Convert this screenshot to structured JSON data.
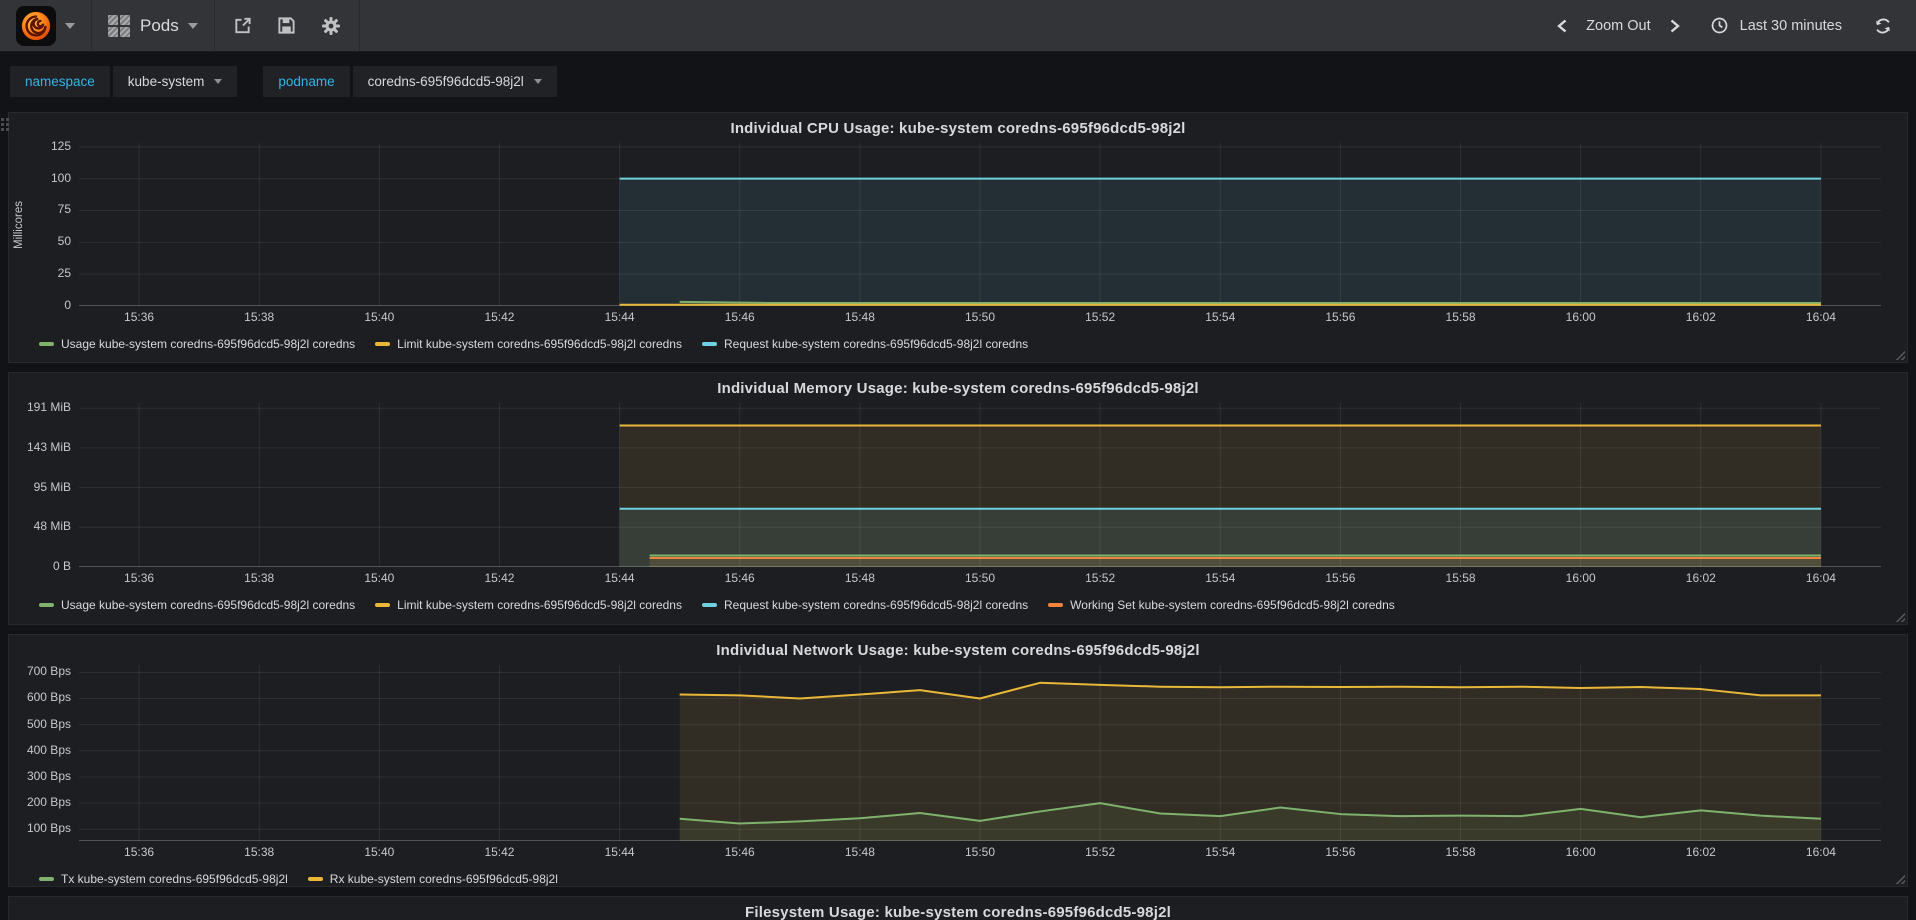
{
  "navbar": {
    "dashboard_title": "Pods",
    "zoom_out_label": "Zoom Out",
    "time_range_label": "Last 30 minutes"
  },
  "variables": [
    {
      "label": "namespace",
      "value": "kube-system"
    },
    {
      "label": "podname",
      "value": "coredns-695f96dcd5-98j2l"
    }
  ],
  "chart_data": [
    {
      "type": "line",
      "title": "Individual CPU Usage: kube-system coredns-695f96dcd5-98j2l",
      "ylabel": "Millicores",
      "xlim": [
        0,
        30
      ],
      "ylim": [
        0,
        128
      ],
      "x_start_time": "15:35",
      "x_end_time": "16:05",
      "grid": true,
      "legend_position": "bottom-left",
      "x_ticks": [
        {
          "t": 1,
          "label": "15:36"
        },
        {
          "t": 3,
          "label": "15:38"
        },
        {
          "t": 5,
          "label": "15:40"
        },
        {
          "t": 7,
          "label": "15:42"
        },
        {
          "t": 9,
          "label": "15:44"
        },
        {
          "t": 11,
          "label": "15:46"
        },
        {
          "t": 13,
          "label": "15:48"
        },
        {
          "t": 15,
          "label": "15:50"
        },
        {
          "t": 17,
          "label": "15:52"
        },
        {
          "t": 19,
          "label": "15:54"
        },
        {
          "t": 21,
          "label": "15:56"
        },
        {
          "t": 23,
          "label": "15:58"
        },
        {
          "t": 25,
          "label": "16:00"
        },
        {
          "t": 27,
          "label": "16:02"
        },
        {
          "t": 29,
          "label": "16:04"
        }
      ],
      "y_ticks": [
        {
          "value": 0,
          "label": "0"
        },
        {
          "value": 25,
          "label": "25"
        },
        {
          "value": 50,
          "label": "50"
        },
        {
          "value": 75,
          "label": "75"
        },
        {
          "value": 100,
          "label": "100"
        },
        {
          "value": 125,
          "label": "125"
        }
      ],
      "series": [
        {
          "name": "Usage",
          "legend_label": "Usage kube-system coredns-695f96dcd5-98j2l coredns",
          "color": "#7eb26d",
          "fill": true,
          "points": [
            [
              10,
              3.2
            ],
            [
              11.5,
              2.4
            ],
            [
              29,
              2.4
            ]
          ]
        },
        {
          "name": "Limit",
          "legend_label": "Limit kube-system coredns-695f96dcd5-98j2l coredns",
          "color": "#eab839",
          "fill": true,
          "points": [
            [
              9,
              1
            ],
            [
              29,
              1
            ]
          ]
        },
        {
          "name": "Request",
          "legend_label": "Request kube-system coredns-695f96dcd5-98j2l coredns",
          "color": "#6ed0e0",
          "fill": true,
          "points": [
            [
              9,
              100
            ],
            [
              29,
              100
            ]
          ]
        }
      ]
    },
    {
      "type": "line",
      "title": "Individual Memory Usage: kube-system coredns-695f96dcd5-98j2l",
      "ylabel": "",
      "xlim": [
        0,
        30
      ],
      "ylim": [
        0,
        197
      ],
      "x_start_time": "15:35",
      "x_end_time": "16:05",
      "grid": true,
      "legend_position": "bottom-left",
      "x_ticks": [
        {
          "t": 1,
          "label": "15:36"
        },
        {
          "t": 3,
          "label": "15:38"
        },
        {
          "t": 5,
          "label": "15:40"
        },
        {
          "t": 7,
          "label": "15:42"
        },
        {
          "t": 9,
          "label": "15:44"
        },
        {
          "t": 11,
          "label": "15:46"
        },
        {
          "t": 13,
          "label": "15:48"
        },
        {
          "t": 15,
          "label": "15:50"
        },
        {
          "t": 17,
          "label": "15:52"
        },
        {
          "t": 19,
          "label": "15:54"
        },
        {
          "t": 21,
          "label": "15:56"
        },
        {
          "t": 23,
          "label": "15:58"
        },
        {
          "t": 25,
          "label": "16:00"
        },
        {
          "t": 27,
          "label": "16:02"
        },
        {
          "t": 29,
          "label": "16:04"
        }
      ],
      "y_ticks": [
        {
          "value": 0,
          "label": "0 B"
        },
        {
          "value": 47.7,
          "label": "48 MiB"
        },
        {
          "value": 95.4,
          "label": "95 MiB"
        },
        {
          "value": 143.1,
          "label": "143 MiB"
        },
        {
          "value": 190.7,
          "label": "191 MiB"
        }
      ],
      "series": [
        {
          "name": "Usage",
          "legend_label": "Usage kube-system coredns-695f96dcd5-98j2l coredns",
          "color": "#7eb26d",
          "fill": true,
          "points": [
            [
              9.5,
              13.8
            ],
            [
              29,
              13.8
            ]
          ]
        },
        {
          "name": "Limit",
          "legend_label": "Limit kube-system coredns-695f96dcd5-98j2l coredns",
          "color": "#eab839",
          "fill": true,
          "points": [
            [
              9,
              170
            ],
            [
              29,
              170
            ]
          ]
        },
        {
          "name": "Request",
          "legend_label": "Request kube-system coredns-695f96dcd5-98j2l coredns",
          "color": "#6ed0e0",
          "fill": true,
          "points": [
            [
              9,
              70
            ],
            [
              29,
              70
            ]
          ]
        },
        {
          "name": "Working Set",
          "legend_label": "Working Set kube-system coredns-695f96dcd5-98j2l coredns",
          "color": "#ef843c",
          "fill": true,
          "points": [
            [
              9.5,
              10.8
            ],
            [
              29,
              10.8
            ]
          ]
        }
      ]
    },
    {
      "type": "line",
      "title": "Individual Network Usage: kube-system coredns-695f96dcd5-98j2l",
      "ylabel": "",
      "xlim": [
        0,
        30
      ],
      "ylim": [
        55,
        728
      ],
      "x_start_time": "15:35",
      "x_end_time": "16:05",
      "grid": true,
      "legend_position": "bottom-left",
      "x_ticks": [
        {
          "t": 1,
          "label": "15:36"
        },
        {
          "t": 3,
          "label": "15:38"
        },
        {
          "t": 5,
          "label": "15:40"
        },
        {
          "t": 7,
          "label": "15:42"
        },
        {
          "t": 9,
          "label": "15:44"
        },
        {
          "t": 11,
          "label": "15:46"
        },
        {
          "t": 13,
          "label": "15:48"
        },
        {
          "t": 15,
          "label": "15:50"
        },
        {
          "t": 17,
          "label": "15:52"
        },
        {
          "t": 19,
          "label": "15:54"
        },
        {
          "t": 21,
          "label": "15:56"
        },
        {
          "t": 23,
          "label": "15:58"
        },
        {
          "t": 25,
          "label": "16:00"
        },
        {
          "t": 27,
          "label": "16:02"
        },
        {
          "t": 29,
          "label": "16:04"
        }
      ],
      "y_ticks": [
        {
          "value": 100,
          "label": "100 Bps"
        },
        {
          "value": 200,
          "label": "200 Bps"
        },
        {
          "value": 300,
          "label": "300 Bps"
        },
        {
          "value": 400,
          "label": "400 Bps"
        },
        {
          "value": 500,
          "label": "500 Bps"
        },
        {
          "value": 600,
          "label": "600 Bps"
        },
        {
          "value": 700,
          "label": "700 Bps"
        }
      ],
      "series": [
        {
          "name": "Tx",
          "legend_label": "Tx kube-system coredns-695f96dcd5-98j2l",
          "color": "#7eb26d",
          "fill": true,
          "points": [
            [
              10,
              140
            ],
            [
              11,
              122
            ],
            [
              12,
              130
            ],
            [
              13,
              142
            ],
            [
              14,
              162
            ],
            [
              15,
              132
            ],
            [
              16,
              168
            ],
            [
              17,
              200
            ],
            [
              18,
              160
            ],
            [
              19,
              150
            ],
            [
              20,
              183
            ],
            [
              21,
              158
            ],
            [
              22,
              150
            ],
            [
              23,
              152
            ],
            [
              24,
              150
            ],
            [
              25,
              178
            ],
            [
              26,
              146
            ],
            [
              27,
              172
            ],
            [
              28,
              152
            ],
            [
              29,
              140
            ]
          ]
        },
        {
          "name": "Rx",
          "legend_label": "Rx kube-system coredns-695f96dcd5-98j2l",
          "color": "#eab839",
          "fill": true,
          "points": [
            [
              10,
              615
            ],
            [
              11,
              612
            ],
            [
              12,
              600
            ],
            [
              13,
              615
            ],
            [
              14,
              632
            ],
            [
              15,
              600
            ],
            [
              16,
              660
            ],
            [
              17,
              652
            ],
            [
              18,
              645
            ],
            [
              19,
              643
            ],
            [
              20,
              645
            ],
            [
              21,
              644
            ],
            [
              22,
              645
            ],
            [
              23,
              643
            ],
            [
              24,
              645
            ],
            [
              25,
              640
            ],
            [
              26,
              644
            ],
            [
              27,
              636
            ],
            [
              28,
              612
            ],
            [
              29,
              612
            ]
          ]
        }
      ]
    },
    {
      "type": "line",
      "title": "Filesystem Usage: kube-system coredns-695f96dcd5-98j2l",
      "ylabel": "",
      "series": []
    }
  ]
}
